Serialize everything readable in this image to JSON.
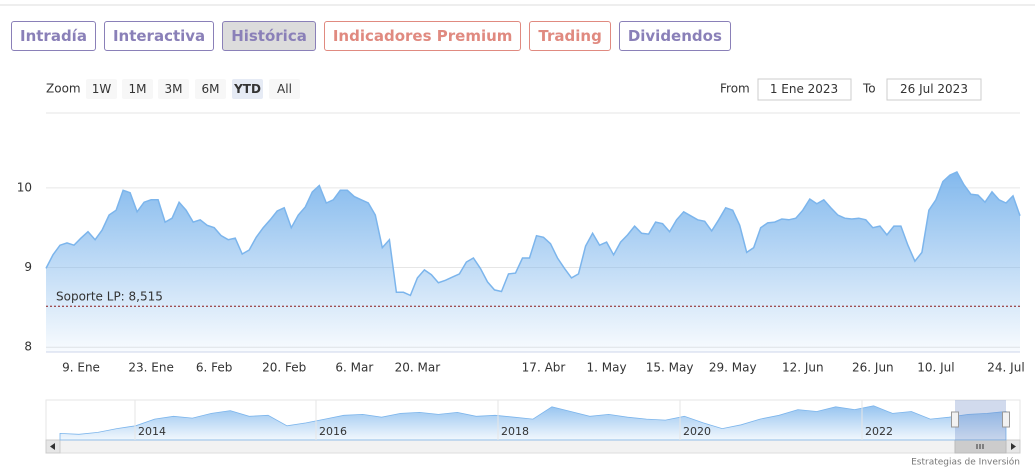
{
  "tabs": [
    "Intradía",
    "Interactiva",
    "Histórica",
    "Indicadores Premium",
    "Trading",
    "Dividendos"
  ],
  "tab_colors": [
    "#8a80b8",
    "#8a80b8",
    "#8a80b8",
    "#e08a80",
    "#e08a80",
    "#8a80b8"
  ],
  "active_tab": 2,
  "range_selector": {
    "zoom_label": "Zoom",
    "buttons": [
      "1W",
      "1M",
      "3M",
      "6M",
      "YTD",
      "All"
    ],
    "selected_button": 4,
    "from_label": "From",
    "from": "1 Ene 2023",
    "to_label": "To",
    "to": "26 Jul 2023"
  },
  "chart_data": {
    "type": "area",
    "categories": [
      null,
      null,
      null,
      null,
      null,
      "9. Ene",
      null,
      null,
      null,
      null,
      null,
      null,
      null,
      null,
      null,
      "23. Ene",
      null,
      null,
      null,
      null,
      null,
      null,
      null,
      null,
      "6. Feb",
      null,
      null,
      null,
      null,
      null,
      null,
      null,
      null,
      null,
      "20. Feb",
      null,
      null,
      null,
      null,
      null,
      null,
      null,
      null,
      null,
      "6. Mar",
      null,
      null,
      null,
      null,
      null,
      null,
      null,
      null,
      "20. Mar",
      null,
      null,
      null,
      null,
      null,
      null,
      null,
      null,
      null,
      null,
      null,
      null,
      null,
      null,
      null,
      null,
      null,
      "17. Abr",
      null,
      null,
      null,
      null,
      null,
      null,
      null,
      null,
      "1. May",
      null,
      null,
      null,
      null,
      null,
      null,
      null,
      null,
      "15. May",
      null,
      null,
      null,
      null,
      null,
      null,
      null,
      null,
      "29. May",
      null,
      null,
      null,
      null,
      null,
      null,
      null,
      null,
      null,
      "12. Jun",
      null,
      null,
      null,
      null,
      null,
      null,
      null,
      null,
      null,
      "26. Jun",
      null,
      null,
      null,
      null,
      null,
      null,
      null,
      null,
      "10. Jul",
      null,
      null,
      null,
      null,
      null,
      null,
      null,
      null,
      null,
      "24. Jul",
      null,
      null
    ],
    "values": [
      8.99,
      9.16,
      9.28,
      9.31,
      9.28,
      9.37,
      9.45,
      9.35,
      9.47,
      9.66,
      9.72,
      9.97,
      9.94,
      9.7,
      9.82,
      9.85,
      9.85,
      9.57,
      9.62,
      9.82,
      9.72,
      9.57,
      9.6,
      9.53,
      9.5,
      9.4,
      9.35,
      9.37,
      9.17,
      9.22,
      9.38,
      9.5,
      9.6,
      9.71,
      9.75,
      9.5,
      9.66,
      9.76,
      9.95,
      10.03,
      9.81,
      9.85,
      9.97,
      9.97,
      9.89,
      9.85,
      9.81,
      9.66,
      9.25,
      9.35,
      8.69,
      8.69,
      8.65,
      8.87,
      8.97,
      8.91,
      8.81,
      8.84,
      8.88,
      8.92,
      9.07,
      9.12,
      8.99,
      8.82,
      8.72,
      8.7,
      8.92,
      8.93,
      9.12,
      9.12,
      9.4,
      9.38,
      9.3,
      9.12,
      8.99,
      8.87,
      8.92,
      9.27,
      9.43,
      9.28,
      9.32,
      9.16,
      9.32,
      9.41,
      9.52,
      9.43,
      9.42,
      9.57,
      9.55,
      9.45,
      9.6,
      9.7,
      9.65,
      9.6,
      9.58,
      9.46,
      9.6,
      9.75,
      9.72,
      9.53,
      9.19,
      9.25,
      9.5,
      9.56,
      9.57,
      9.61,
      9.6,
      9.62,
      9.72,
      9.86,
      9.8,
      9.85,
      9.75,
      9.66,
      9.62,
      9.61,
      9.62,
      9.6,
      9.5,
      9.52,
      9.41,
      9.52,
      9.52,
      9.28,
      9.08,
      9.19,
      9.72,
      9.85,
      10.08,
      10.16,
      10.2,
      10.04,
      9.92,
      9.91,
      9.82,
      9.95,
      9.85,
      9.81,
      9.9,
      9.65
    ],
    "color": "#7cb5ec",
    "ylim": [
      7.94,
      10.94
    ],
    "yticks": [
      8,
      9,
      10
    ],
    "grid": true,
    "plot_lines": [
      {
        "value": 8.515,
        "label": "Soporte LP: 8,515",
        "color": "#8b1a1a"
      }
    ],
    "navigator": {
      "labels": [
        "2014",
        "2016",
        "2018",
        "2020",
        "2022"
      ],
      "values": [
        6.05,
        5.9,
        6.2,
        6.8,
        7.25,
        8.3,
        8.75,
        8.45,
        9.2,
        9.65,
        8.75,
        8.9,
        7.25,
        7.7,
        8.3,
        8.9,
        9.05,
        8.6,
        9.2,
        9.35,
        9.05,
        9.35,
        8.75,
        8.9,
        8.6,
        8.3,
        10.25,
        9.5,
        8.75,
        9.05,
        8.6,
        8.3,
        8.15,
        8.75,
        7.7,
        6.8,
        7.4,
        8.3,
        8.9,
        9.8,
        9.5,
        10.25,
        9.8,
        10.4,
        9.2,
        9.5,
        8.3,
        8.6,
        9.05,
        9.2,
        9.5
      ],
      "ylim": [
        5,
        11
      ]
    }
  },
  "credit": "Estrategias de Inversión"
}
